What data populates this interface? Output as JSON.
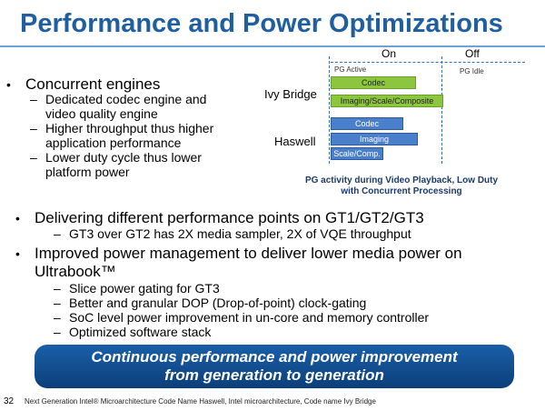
{
  "title": "Performance and Power Optimizations",
  "bullets": {
    "b1": "Concurrent engines",
    "b1_subs": [
      "Dedicated codec engine and",
      "video quality engine",
      "Higher throughput thus higher",
      "application performance",
      "Lower duty cycle thus lower",
      "platform power"
    ],
    "b2": "Delivering different performance points on GT1/GT2/GT3",
    "b2_sub": "GT3 over GT2 has 2X media sampler, 2X of VQE throughput",
    "b3_line1": "Improved power management to deliver lower media power on",
    "b3_line2": "Ultrabook™",
    "b3_subs": [
      "Slice power gating for GT3",
      "Better and granular DOP (Drop-of-point) clock-gating",
      "SoC level power improvement in un-core and memory controller",
      "Optimized software stack"
    ]
  },
  "diagram": {
    "on_label": "On",
    "off_label": "Off",
    "pg_active": "PG Active",
    "pg_idle": "PG Idle",
    "ivy_label": "Ivy Bridge",
    "haswell_label": "Haswell",
    "ivy_bars": [
      "Codec",
      "Imaging/Scale/Composite"
    ],
    "haswell_bars": [
      "Codec",
      "Imaging",
      "Scale/Comp."
    ],
    "caption_line1": "PG activity during Video Playback,  Low Duty",
    "caption_line2": "with Concurrent Processing",
    "colors": {
      "ivy_bar": "#8cc63f",
      "haswell_bar": "#4a7fcc"
    }
  },
  "banner": {
    "line1": "Continuous performance and power improvement",
    "line2": "from generation to generation"
  },
  "page_number": "32",
  "footer": "Next Generation Intel® Microarchitecture Code Name Haswell, Intel microarchitecture, Code name Ivy Bridge"
}
